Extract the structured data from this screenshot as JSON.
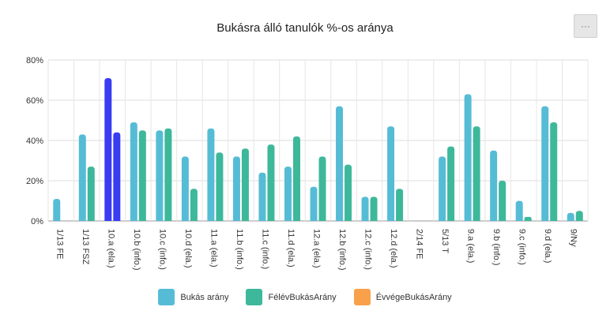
{
  "menu": {
    "icon": "ellipsis-icon",
    "label": "···"
  },
  "chart_data": {
    "type": "bar",
    "title": "Bukásra álló tanulók %-os aránya",
    "ytick_labels": [
      "0%",
      "20%",
      "40%",
      "60%",
      "80%"
    ],
    "ylim": [
      0,
      80
    ],
    "grid": true,
    "legend_position": "bottom",
    "categories": [
      "1/13 FE",
      "1/13 FSZ",
      "10.a (ela.)",
      "10.b (info.)",
      "10.c (info.)",
      "10.d (ela.)",
      "11.a (ela.)",
      "11.b (info.)",
      "11.c (info.)",
      "11.d (ela.)",
      "12.a (ela.)",
      "12.b (info.)",
      "12.c (info.)",
      "12.d (ela.)",
      "2/14 FE",
      "5/13 T",
      "9.a (ela.)",
      "9.b (info.)",
      "9.c (info.)",
      "9.d (ela.)",
      "9/Ny"
    ],
    "highlighted_category": "10.a (ela.)",
    "highlight_color": "#3a3cf2",
    "series": [
      {
        "name": "Bukás arány",
        "color": "#56bcd6",
        "values": [
          11,
          43,
          71,
          49,
          45,
          32,
          46,
          32,
          24,
          27,
          17,
          57,
          12,
          47,
          0,
          32,
          63,
          35,
          10,
          57,
          4
        ]
      },
      {
        "name": "FélévBukásArány",
        "color": "#3db89a",
        "values": [
          0,
          27,
          44,
          45,
          46,
          16,
          34,
          36,
          38,
          42,
          32,
          28,
          12,
          16,
          0,
          37,
          47,
          20,
          2,
          49,
          5
        ]
      },
      {
        "name": "ÉvvégeBukásArány",
        "color": "#f9a04a",
        "values": [
          0,
          0,
          0,
          0,
          0,
          0,
          0,
          0,
          0,
          0,
          0,
          0,
          0,
          0,
          0,
          0,
          0,
          0,
          0,
          0,
          0
        ]
      }
    ]
  }
}
